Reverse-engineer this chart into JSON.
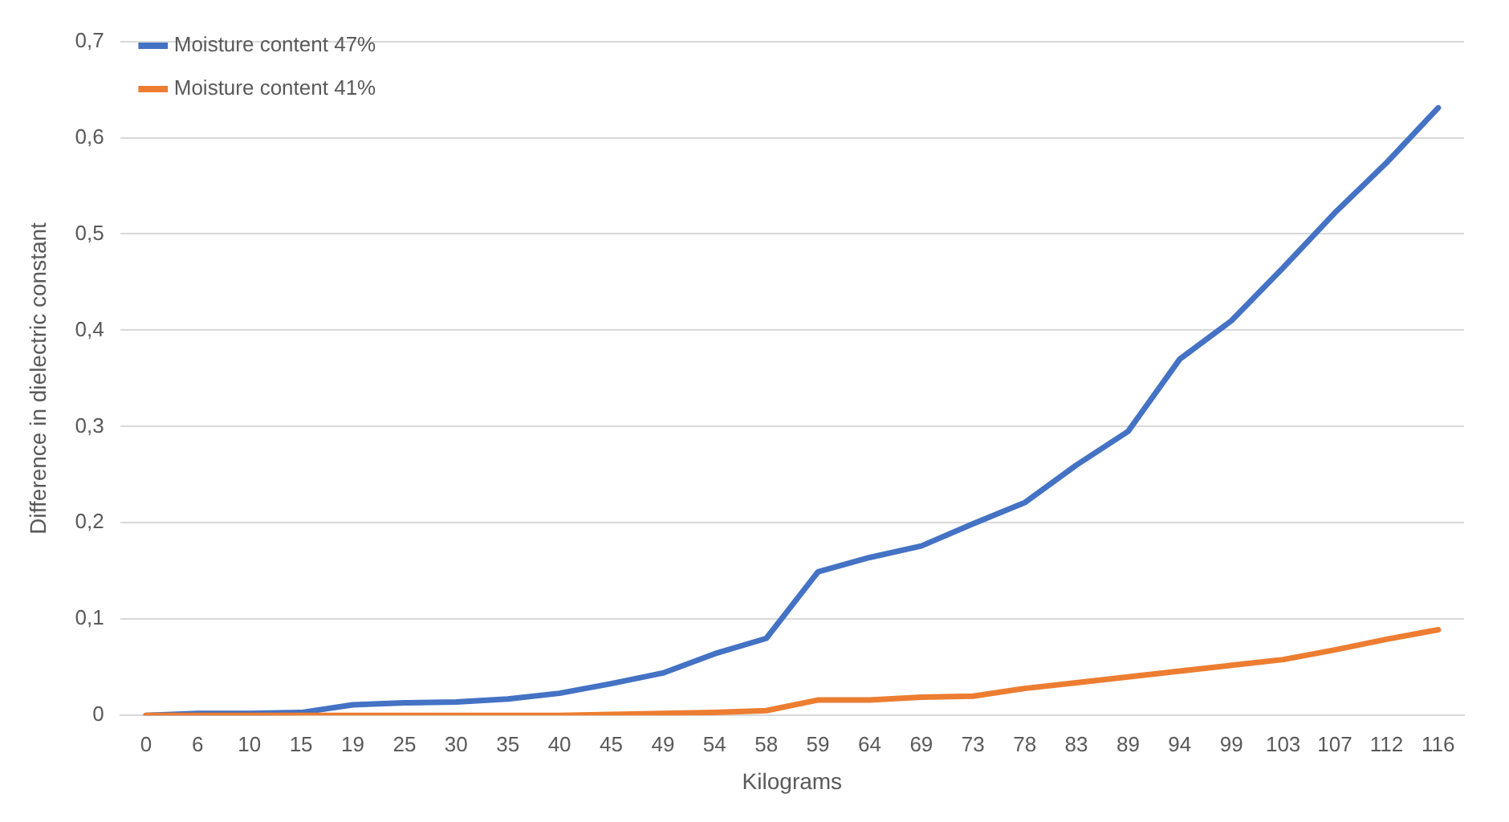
{
  "chart_data": {
    "type": "line",
    "xlabel": "Kilograms",
    "ylabel": "Difference in dielectric constant",
    "categories": [
      "0",
      "6",
      "10",
      "15",
      "19",
      "25",
      "30",
      "35",
      "40",
      "45",
      "49",
      "54",
      "58",
      "59",
      "64",
      "69",
      "73",
      "78",
      "83",
      "89",
      "94",
      "99",
      "103",
      "107",
      "112",
      "116"
    ],
    "series": [
      {
        "name": "Moisture content 47%",
        "color": "#4472c4",
        "values": [
          0,
          0.002,
          0.002,
          0.003,
          0.011,
          0.013,
          0.014,
          0.017,
          0.023,
          0.033,
          0.044,
          0.064,
          0.08,
          0.149,
          0.164,
          0.176,
          0.199,
          0.221,
          0.26,
          0.295,
          0.37,
          0.41,
          0.465,
          0.522,
          0.574,
          0.631
        ]
      },
      {
        "name": "Moisture content 41%",
        "color": "#ed7d31",
        "values": [
          0,
          0,
          0,
          0,
          0,
          0,
          0,
          0,
          0,
          0.001,
          0.002,
          0.003,
          0.005,
          0.016,
          0.016,
          0.019,
          0.02,
          0.028,
          0.034,
          0.04,
          0.046,
          0.052,
          0.058,
          0.068,
          0.079,
          0.089
        ]
      }
    ],
    "ylim": [
      0,
      0.7
    ],
    "yticks": [
      0,
      {
        "value": 0.1,
        "label": "0,1"
      },
      {
        "value": 0.2,
        "label": "0,2"
      },
      {
        "value": 0.3,
        "label": "0,3"
      },
      {
        "value": 0.4,
        "label": "0,4"
      },
      {
        "value": 0.5,
        "label": "0,5"
      },
      {
        "value": 0.6,
        "label": "0,6"
      },
      {
        "value": 0.7,
        "label": "0,7"
      }
    ],
    "grid": "y",
    "legend": "top left",
    "marker": "none",
    "line_style": "solid"
  }
}
